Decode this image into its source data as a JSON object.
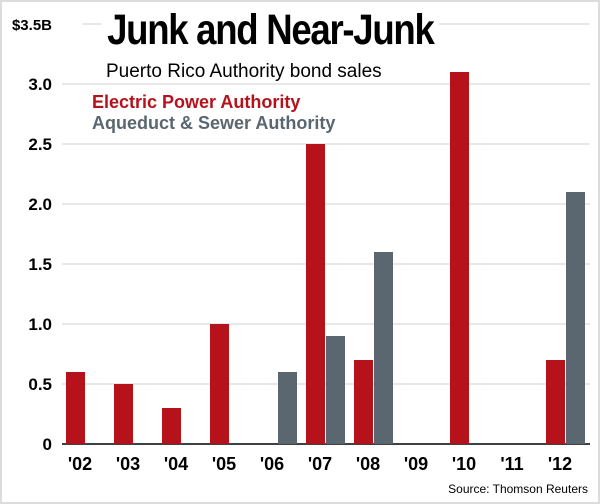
{
  "chart_data": {
    "type": "bar",
    "title": "Junk and Near-Junk",
    "subtitle": "Puerto Rico Authority bond sales",
    "categories": [
      "'02",
      "'03",
      "'04",
      "'05",
      "'06",
      "'07",
      "'08",
      "'09",
      "'10",
      "'11",
      "'12"
    ],
    "series": [
      {
        "name": "Electric Power Authority",
        "color": "#b5121b",
        "values": [
          0.6,
          0.5,
          0.3,
          1.0,
          0,
          2.5,
          0.7,
          0,
          3.1,
          0,
          0.7
        ]
      },
      {
        "name": "Aqueduct & Sewer Authority",
        "color": "#5a6670",
        "values": [
          0,
          0,
          0,
          0,
          0.6,
          0.9,
          1.6,
          0,
          0,
          0,
          2.1
        ]
      }
    ],
    "yticks": [
      "0",
      "0.5",
      "1.0",
      "1.5",
      "2.0",
      "2.5",
      "3.0",
      "$3.5B"
    ],
    "ylim": [
      0,
      3.5
    ],
    "grid": true,
    "legend": "top-left",
    "source": "Source: Thomson Reuters"
  }
}
